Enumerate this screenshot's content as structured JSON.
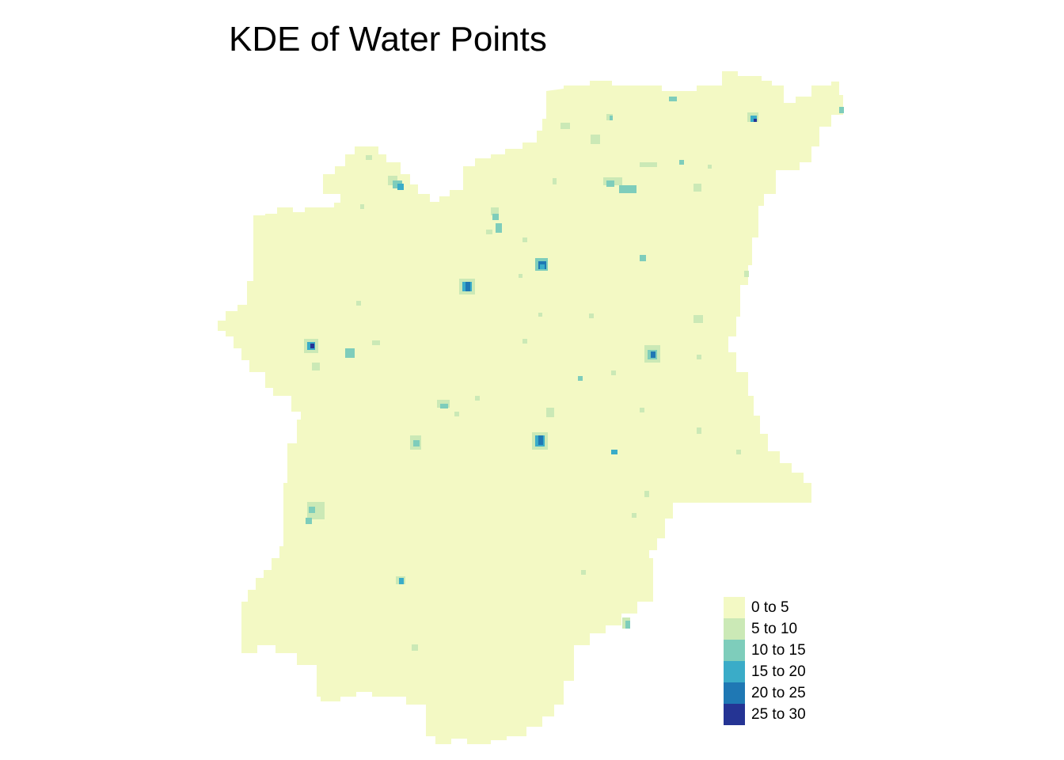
{
  "map": {
    "title": "KDE of Water Points",
    "background_color": "#ffffff",
    "region_base_color": "#f3f9c4",
    "legend": {
      "placement": "bottom-right",
      "classes": [
        {
          "label": "0 to 5",
          "color": "#f3f9c4"
        },
        {
          "label": "5 to 10",
          "color": "#cbe9b6"
        },
        {
          "label": "10 to 15",
          "color": "#7ecdbb"
        },
        {
          "label": "15 to 20",
          "color": "#3aacc8"
        },
        {
          "label": "20 to 25",
          "color": "#1f78b4"
        },
        {
          "label": "25 to 30",
          "color": "#253494"
        }
      ]
    }
  }
}
